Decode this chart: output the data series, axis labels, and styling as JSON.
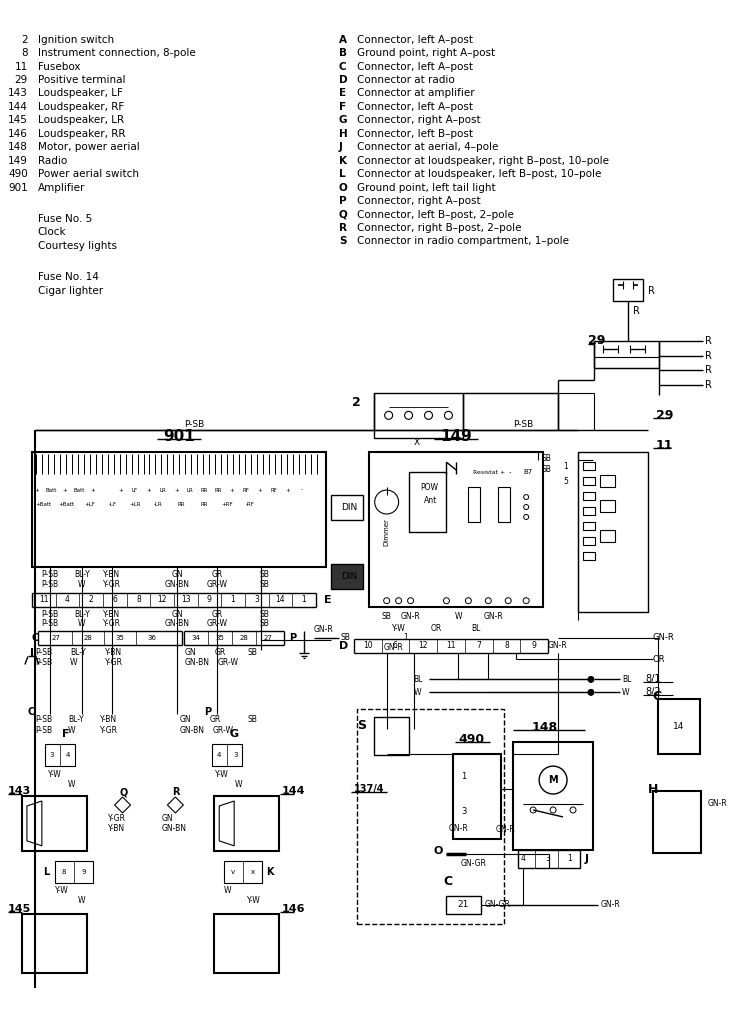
{
  "bg_color": "#ffffff",
  "line_color": "#000000",
  "text_color": "#000000",
  "legend_left": [
    [
      "2",
      "Ignition switch"
    ],
    [
      "8",
      "Instrument connection, 8-pole"
    ],
    [
      "11",
      "Fusebox"
    ],
    [
      "29",
      "Positive terminal"
    ],
    [
      "143",
      "Loudspeaker, LF"
    ],
    [
      "144",
      "Loudspeaker, RF"
    ],
    [
      "145",
      "Loudspeaker, LR"
    ],
    [
      "146",
      "Loudspeaker, RR"
    ],
    [
      "148",
      "Motor, power aerial"
    ],
    [
      "149",
      "Radio"
    ],
    [
      "490",
      "Power aerial switch"
    ],
    [
      "901",
      "Amplifier"
    ]
  ],
  "legend_left2": [
    "Fuse No. 5",
    "Clock",
    "Courtesy lights"
  ],
  "legend_left3": [
    "Fuse No. 14",
    "Cigar lighter"
  ],
  "legend_right": [
    [
      "A",
      "Connector, left A–post"
    ],
    [
      "B",
      "Ground point, right A–post"
    ],
    [
      "C",
      "Connector, left A–post"
    ],
    [
      "D",
      "Connector at radio"
    ],
    [
      "E",
      "Connector at amplifier"
    ],
    [
      "F",
      "Connector, left A–post"
    ],
    [
      "G",
      "Connector, right A–post"
    ],
    [
      "H",
      "Connector, left B–post"
    ],
    [
      "J",
      "Connector at aerial, 4–pole"
    ],
    [
      "K",
      "Connector at loudspeaker, right B–post, 10–pole"
    ],
    [
      "L",
      "Connector at loudspeaker, left B–post, 10–pole"
    ],
    [
      "O",
      "Ground point, left tail light"
    ],
    [
      "P",
      "Connector, right A–post"
    ],
    [
      "Q",
      "Connector, left B–post, 2–pole"
    ],
    [
      "R",
      "Connector, right B–post, 2–pole"
    ],
    [
      "S",
      "Connector in radio compartment, 1–pole"
    ]
  ]
}
